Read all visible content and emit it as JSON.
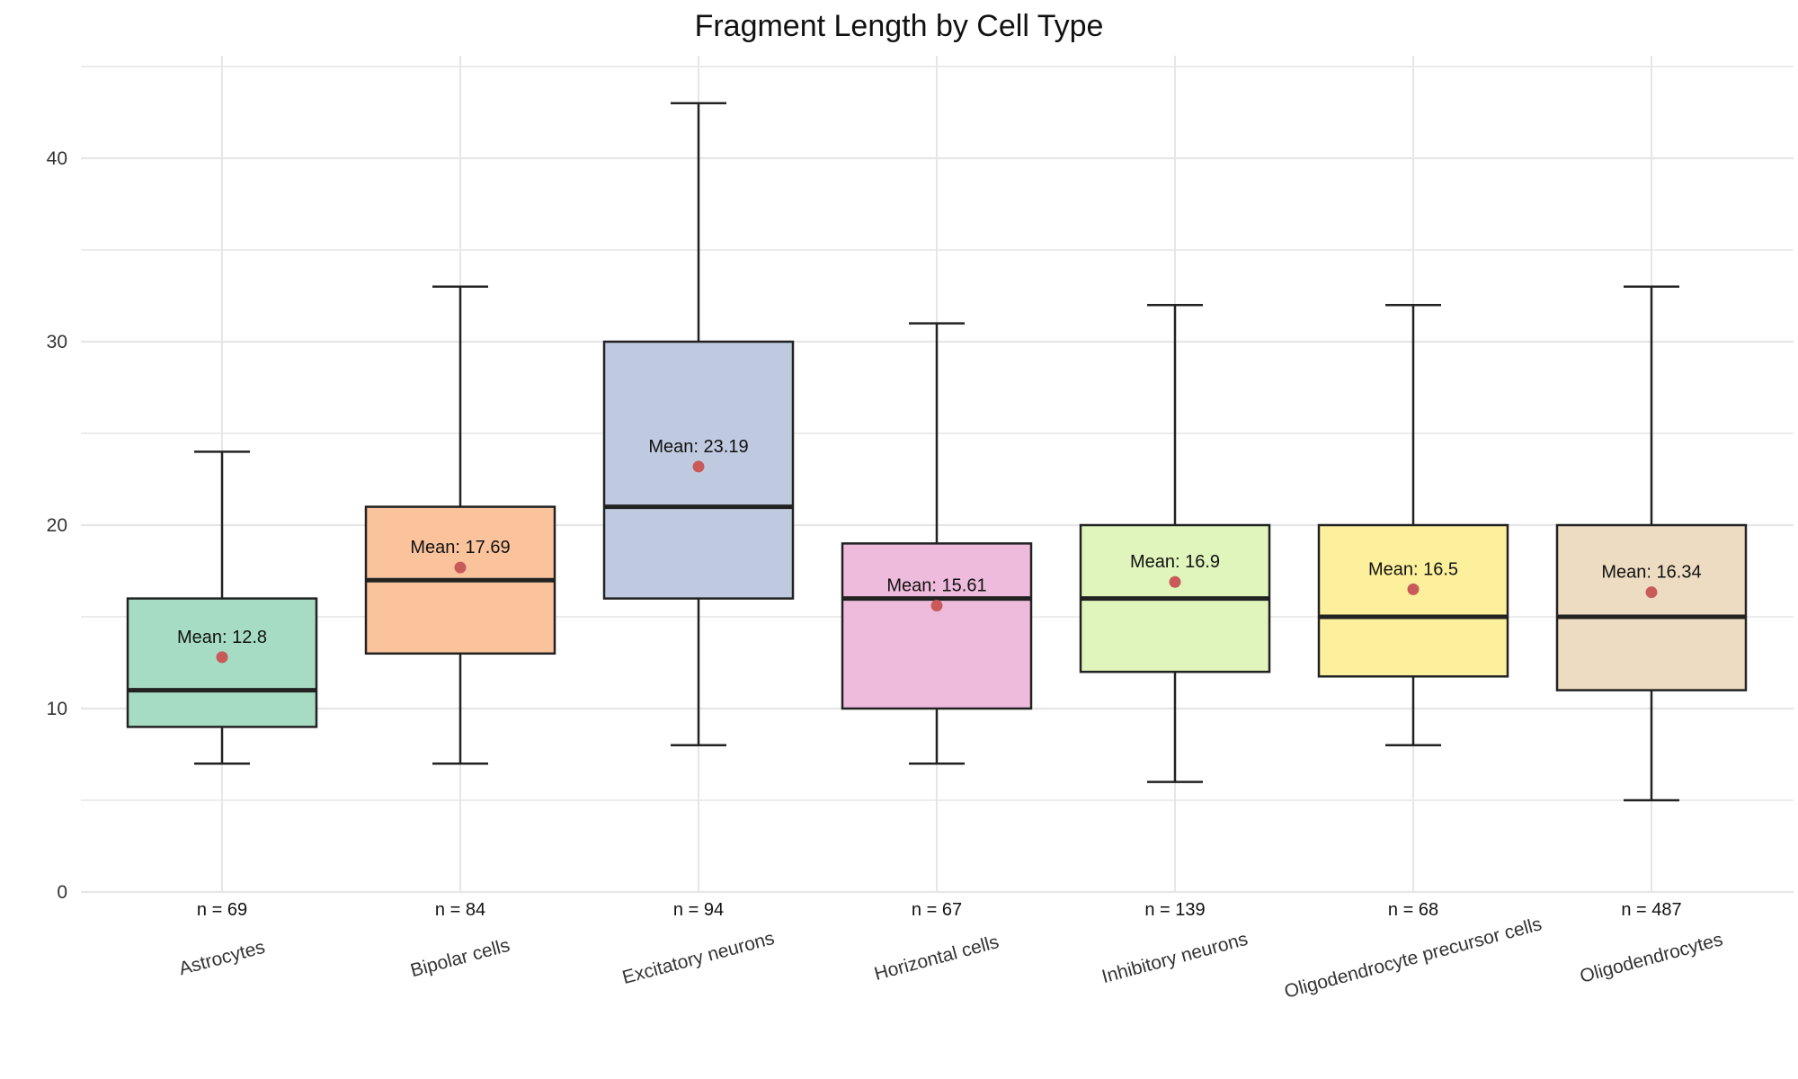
{
  "chart_data": {
    "type": "box",
    "title": "Fragment Length by Cell Type",
    "xlabel": "",
    "ylabel": "",
    "ylim": [
      0,
      45
    ],
    "yticks": [
      0,
      10,
      20,
      30,
      40
    ],
    "grid": true,
    "mean_color": "#c85a5a",
    "categories": [
      {
        "name": "Astrocytes",
        "n_label": "n = 69",
        "whisker_low": 7,
        "q1": 9,
        "median": 11,
        "q3": 16,
        "whisker_high": 24,
        "mean": 12.8,
        "mean_label": "Mean: 12.8",
        "color": "#a6dcc4"
      },
      {
        "name": "Bipolar cells",
        "n_label": "n = 84",
        "whisker_low": 7,
        "q1": 13,
        "median": 17,
        "q3": 21,
        "whisker_high": 33,
        "mean": 17.69,
        "mean_label": "Mean: 17.69",
        "color": "#fbc39c"
      },
      {
        "name": "Excitatory neurons",
        "n_label": "n = 94",
        "whisker_low": 8,
        "q1": 16,
        "median": 21,
        "q3": 30,
        "whisker_high": 43,
        "mean": 23.19,
        "mean_label": "Mean: 23.19",
        "color": "#bfcae0"
      },
      {
        "name": "Horizontal cells",
        "n_label": "n = 67",
        "whisker_low": 7,
        "q1": 10,
        "median": 16,
        "q3": 19,
        "whisker_high": 31,
        "mean": 15.61,
        "mean_label": "Mean: 15.61",
        "color": "#eebbdc"
      },
      {
        "name": "Inhibitory neurons",
        "n_label": "n = 139",
        "whisker_low": 6,
        "q1": 12,
        "median": 16,
        "q3": 20,
        "whisker_high": 32,
        "mean": 16.9,
        "mean_label": "Mean: 16.9",
        "color": "#e0f5bc"
      },
      {
        "name": "Oligodendrocyte precursor cells",
        "n_label": "n = 68",
        "whisker_low": 8,
        "q1": 11.75,
        "median": 15,
        "q3": 20,
        "whisker_high": 32,
        "mean": 16.5,
        "mean_label": "Mean: 16.5",
        "color": "#fdf09c"
      },
      {
        "name": "Oligodendrocytes",
        "n_label": "n = 487",
        "whisker_low": 5,
        "q1": 11,
        "median": 15,
        "q3": 20,
        "whisker_high": 33,
        "mean": 16.34,
        "mean_label": "Mean: 16.34",
        "color": "#eddcc2"
      }
    ]
  }
}
